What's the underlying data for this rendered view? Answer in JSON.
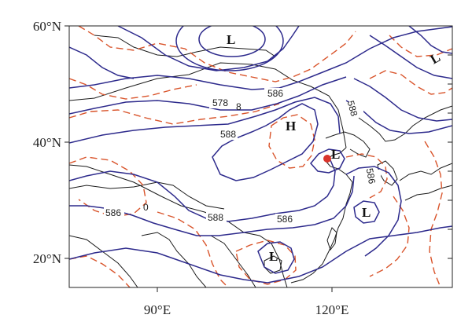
{
  "axes": {
    "lat_labels": [
      "60°N",
      "40°N",
      "20°N"
    ],
    "lon_labels": [
      "90°E",
      "120°E"
    ]
  },
  "contour_labels": [
    "578",
    "586",
    "588",
    "588",
    "588",
    "586",
    "586",
    "586",
    "0",
    "8"
  ],
  "centers": [
    {
      "id": "low-north",
      "label": "L"
    },
    {
      "id": "high-north-china",
      "label": "H"
    },
    {
      "id": "low-bohai",
      "label": "L"
    },
    {
      "id": "low-east-china-sea",
      "label": "L"
    },
    {
      "id": "low-south-china-sea",
      "label": "L"
    },
    {
      "id": "low-northeast",
      "label": "L"
    }
  ],
  "marker": {
    "color": "#d9342b"
  },
  "colors": {
    "solid_contour": "#2d2a8c",
    "dashed_contour": "#d9542b",
    "coastline": "#1a1a1a"
  }
}
